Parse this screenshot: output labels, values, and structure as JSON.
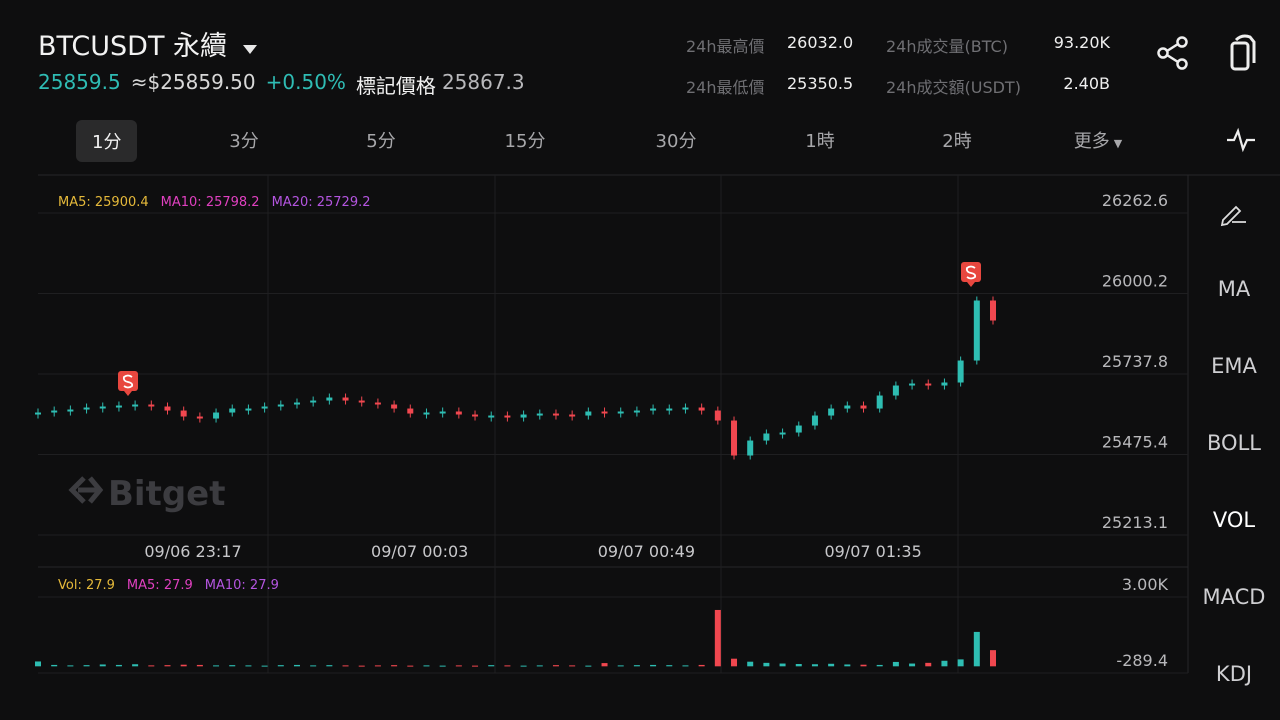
{
  "header": {
    "symbol": "BTCUSDT 永續",
    "price": "25859.5",
    "usd_price": "≈$25859.50",
    "change": "+0.50%",
    "mark_label": "標記價格",
    "mark_price": "25867.3"
  },
  "stats": [
    {
      "label": "24h最高價",
      "value": "26032.0"
    },
    {
      "label": "24h最低價",
      "value": "25350.5"
    },
    {
      "label": "24h成交量(BTC)",
      "value": "93.20K"
    },
    {
      "label": "24h成交額(USDT)",
      "value": "2.40B"
    }
  ],
  "tabs": [
    "1分",
    "3分",
    "5分",
    "15分",
    "30分",
    "1時",
    "2時",
    "更多"
  ],
  "side_tools": [
    "MA",
    "EMA",
    "BOLL",
    "VOL",
    "MACD",
    "KDJ"
  ],
  "watermark": "Bitget",
  "chart_data": [
    {
      "type": "candlestick",
      "legend_texts": [
        "MA5: 25900.4",
        "MA10: 25798.2",
        "MA20: 25729.2"
      ],
      "x_labels": [
        "09/06 23:17",
        "09/07 00:03",
        "09/07 00:49",
        "09/07 01:35"
      ],
      "up_color": "#2ebdb2",
      "down_color": "#f0474f",
      "ylim": [
        25213.1,
        26376.7
      ],
      "yticks": [
        25213.1,
        25475.4,
        25737.8,
        26000.2,
        26262.6
      ],
      "values": [
        25612.3,
        25618.8,
        25622.1,
        25628.6,
        25631.9,
        25635.1,
        25638.4,
        25631.9,
        25618.8,
        25599.3,
        25592.7,
        25612.3,
        25625.3,
        25625.3,
        25631.9,
        25638.4,
        25644.9,
        25651.4,
        25661.2,
        25651.4,
        25644.9,
        25638.4,
        25625.3,
        25609.0,
        25612.3,
        25615.6,
        25605.8,
        25602.5,
        25602.5,
        25596.0,
        25605.8,
        25609.0,
        25605.8,
        25602.5,
        25615.6,
        25612.3,
        25615.6,
        25618.8,
        25625.3,
        25625.3,
        25628.6,
        25618.8,
        25586.2,
        25472.2,
        25521.0,
        25543.9,
        25547.1,
        25569.9,
        25602.5,
        25625.3,
        25635.1,
        25625.3,
        25667.7,
        25700.3,
        25706.8,
        25700.3,
        25710.1,
        25781.8,
        25977.4,
        25912.2
      ]
    },
    {
      "type": "bar",
      "legend_texts": [
        "Vol: 27.9",
        "MA5: 27.9",
        "MA10: 27.9"
      ],
      "ylim": [
        -289.4,
        4300
      ],
      "yticks": [
        {
          "value": -289.4,
          "label": "-289.4"
        },
        {
          "value": 3000,
          "label": "3.00K"
        }
      ],
      "values": [
        210,
        60,
        40,
        50,
        80,
        60,
        90,
        40,
        50,
        70,
        60,
        40,
        50,
        40,
        30,
        50,
        60,
        40,
        50,
        40,
        30,
        40,
        50,
        30,
        40,
        30,
        40,
        30,
        50,
        40,
        30,
        40,
        50,
        40,
        30,
        140,
        40,
        50,
        60,
        50,
        40,
        60,
        2440,
        330,
        200,
        150,
        120,
        100,
        90,
        110,
        80,
        70,
        60,
        190,
        120,
        150,
        240,
        300,
        1490,
        700
      ]
    }
  ]
}
